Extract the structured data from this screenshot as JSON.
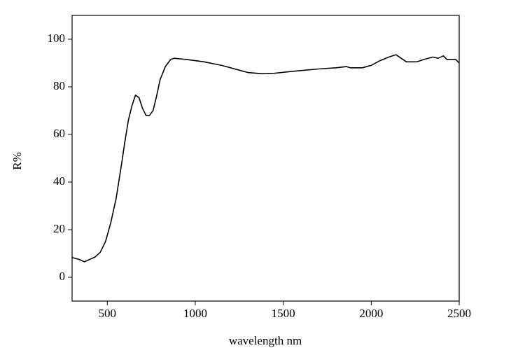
{
  "chart_data": {
    "type": "line",
    "x_label": "wavelength nm",
    "y_label": "R%",
    "x": [
      300,
      340,
      370,
      400,
      430,
      460,
      490,
      520,
      550,
      580,
      600,
      620,
      640,
      660,
      680,
      700,
      720,
      740,
      760,
      780,
      800,
      830,
      860,
      880,
      950,
      1050,
      1150,
      1250,
      1300,
      1380,
      1450,
      1550,
      1700,
      1800,
      1860,
      1880,
      1950,
      2000,
      2050,
      2100,
      2140,
      2170,
      2200,
      2260,
      2300,
      2350,
      2380,
      2410,
      2430,
      2480,
      2500
    ],
    "series": [
      {
        "color": "#000000",
        "values": [
          8.3,
          7.5,
          6.5,
          7.5,
          8.5,
          10.5,
          15,
          23,
          33,
          47,
          57,
          66,
          72,
          76.5,
          75.5,
          71,
          68,
          68,
          70,
          76,
          83,
          88.5,
          91.5,
          92,
          91.5,
          90.5,
          89,
          87,
          86,
          85.5,
          85.7,
          86.5,
          87.5,
          88,
          88.5,
          88,
          88,
          89,
          91,
          92.5,
          93.5,
          92,
          90.5,
          90.5,
          91.5,
          92.5,
          92,
          93,
          91.5,
          91.5,
          90
        ]
      }
    ],
    "xlim": [
      300,
      2500
    ],
    "ylim": [
      -10,
      110
    ],
    "xticks": [
      500,
      1000,
      1500,
      2000,
      2500
    ],
    "yticks": [
      0,
      20,
      40,
      60,
      80,
      100
    ]
  }
}
